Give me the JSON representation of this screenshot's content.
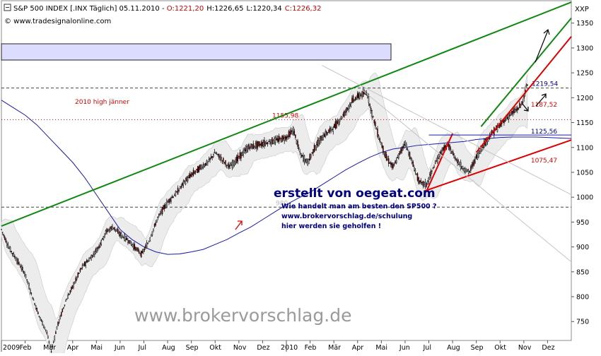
{
  "header": {
    "title": "S&P 500 INDEX [.INX Täglich] 05.11.2010 - ",
    "ohlc": [
      {
        "label": "O:",
        "value": "1221,20"
      },
      {
        "label": "H:",
        "value": "1226,65"
      },
      {
        "label": "L:",
        "value": "1220,34"
      },
      {
        "label": "C:",
        "value": "1226,32"
      }
    ],
    "source": "© www.tradesignalonline.com",
    "symbol": "XXP"
  },
  "colors": {
    "support_line": "#dd0000",
    "channel_line": "#118811",
    "moving_average": "#1a1aa8",
    "candle_up": "#ffffff",
    "candle_down": "#b00000",
    "band_fill": "#ececec",
    "info_text": "#000080",
    "watermark": "#9a9a9a",
    "highlight_box": "#dcdcff"
  },
  "annotations": {
    "headline": "erstellt von oegeat.com",
    "line1": "Wie handelt man am besten den SP500 ?",
    "line2": "www.brokervorschlag.de/schulung",
    "line3": "hier werden sie geholfen !",
    "watermark": "www.brokervorschlag.de",
    "high_label": "2010 high jänner"
  },
  "chart_data": {
    "type": "candlestick",
    "title": "S&P 500 INDEX [.INX Täglich] 05.11.2010",
    "x_unit": "month index (0 = Jan 2009)",
    "xlim": [
      0,
      24
    ],
    "ylim": [
      712,
      1395
    ],
    "yticks": [
      750,
      800,
      850,
      900,
      950,
      1000,
      1050,
      1100,
      1150,
      1200,
      1250,
      1300,
      1350
    ],
    "month_ticks": [
      {
        "x": 0.05,
        "label": "2009"
      },
      {
        "x": 1,
        "label": "Feb"
      },
      {
        "x": 2,
        "label": "Mär"
      },
      {
        "x": 3,
        "label": "Apr"
      },
      {
        "x": 4,
        "label": "Mai"
      },
      {
        "x": 5,
        "label": "Jun"
      },
      {
        "x": 6,
        "label": "Jul"
      },
      {
        "x": 7,
        "label": "Aug"
      },
      {
        "x": 8,
        "label": "Sep"
      },
      {
        "x": 9,
        "label": "Okt"
      },
      {
        "x": 10,
        "label": "Nov"
      },
      {
        "x": 11,
        "label": "Dez"
      },
      {
        "x": 12,
        "label": "2010"
      },
      {
        "x": 13,
        "label": "Feb"
      },
      {
        "x": 14,
        "label": "Mär"
      },
      {
        "x": 15,
        "label": "Apr"
      },
      {
        "x": 16,
        "label": "Mai"
      },
      {
        "x": 17,
        "label": "Jun"
      },
      {
        "x": 18,
        "label": "Jul"
      },
      {
        "x": 19,
        "label": "Aug"
      },
      {
        "x": 20,
        "label": "Sep"
      },
      {
        "x": 21,
        "label": "Okt"
      },
      {
        "x": 22,
        "label": "Nov"
      },
      {
        "x": 23,
        "label": "Dez"
      }
    ],
    "price_path": [
      [
        0.0,
        935
      ],
      [
        0.3,
        900
      ],
      [
        0.7,
        870
      ],
      [
        1.0,
        845
      ],
      [
        1.3,
        800
      ],
      [
        1.6,
        760
      ],
      [
        1.9,
        730
      ],
      [
        2.1,
        690
      ],
      [
        2.35,
        740
      ],
      [
        2.7,
        790
      ],
      [
        3.0,
        820
      ],
      [
        3.4,
        860
      ],
      [
        3.8,
        880
      ],
      [
        4.1,
        900
      ],
      [
        4.4,
        930
      ],
      [
        4.7,
        940
      ],
      [
        5.0,
        925
      ],
      [
        5.3,
        915
      ],
      [
        5.6,
        900
      ],
      [
        5.9,
        885
      ],
      [
        6.2,
        910
      ],
      [
        6.6,
        960
      ],
      [
        7.0,
        990
      ],
      [
        7.4,
        1010
      ],
      [
        7.7,
        1030
      ],
      [
        8.0,
        1045
      ],
      [
        8.4,
        1060
      ],
      [
        8.7,
        1070
      ],
      [
        9.0,
        1090
      ],
      [
        9.3,
        1075
      ],
      [
        9.6,
        1060
      ],
      [
        10.0,
        1080
      ],
      [
        10.4,
        1100
      ],
      [
        10.8,
        1105
      ],
      [
        11.2,
        1110
      ],
      [
        11.6,
        1115
      ],
      [
        12.0,
        1120
      ],
      [
        12.3,
        1135
      ],
      [
        12.6,
        1085
      ],
      [
        12.9,
        1070
      ],
      [
        13.2,
        1100
      ],
      [
        13.6,
        1125
      ],
      [
        14.0,
        1140
      ],
      [
        14.4,
        1165
      ],
      [
        14.8,
        1195
      ],
      [
        15.1,
        1205
      ],
      [
        15.4,
        1210
      ],
      [
        15.6,
        1170
      ],
      [
        15.9,
        1120
      ],
      [
        16.2,
        1080
      ],
      [
        16.5,
        1060
      ],
      [
        16.8,
        1090
      ],
      [
        17.0,
        1110
      ],
      [
        17.3,
        1070
      ],
      [
        17.6,
        1030
      ],
      [
        17.9,
        1025
      ],
      [
        18.2,
        1060
      ],
      [
        18.5,
        1090
      ],
      [
        18.8,
        1105
      ],
      [
        19.1,
        1080
      ],
      [
        19.4,
        1060
      ],
      [
        19.7,
        1050
      ],
      [
        20.0,
        1080
      ],
      [
        20.3,
        1105
      ],
      [
        20.6,
        1125
      ],
      [
        21.0,
        1145
      ],
      [
        21.4,
        1165
      ],
      [
        21.8,
        1180
      ],
      [
        22.0,
        1196
      ],
      [
        22.1,
        1222
      ],
      [
        22.15,
        1226.32
      ]
    ],
    "moving_average": [
      [
        0,
        1195
      ],
      [
        0.5,
        1180
      ],
      [
        1,
        1165
      ],
      [
        1.5,
        1145
      ],
      [
        2,
        1120
      ],
      [
        2.5,
        1095
      ],
      [
        3,
        1070
      ],
      [
        3.5,
        1040
      ],
      [
        4,
        1005
      ],
      [
        4.5,
        970
      ],
      [
        5,
        935
      ],
      [
        5.5,
        915
      ],
      [
        6,
        900
      ],
      [
        6.5,
        890
      ],
      [
        7,
        885
      ],
      [
        7.5,
        886
      ],
      [
        8,
        890
      ],
      [
        8.5,
        895
      ],
      [
        9,
        905
      ],
      [
        9.5,
        915
      ],
      [
        10,
        928
      ],
      [
        10.5,
        940
      ],
      [
        11,
        955
      ],
      [
        11.5,
        970
      ],
      [
        12,
        985
      ],
      [
        12.5,
        998
      ],
      [
        13,
        1010
      ],
      [
        13.5,
        1025
      ],
      [
        14,
        1040
      ],
      [
        14.5,
        1055
      ],
      [
        15,
        1068
      ],
      [
        15.5,
        1080
      ],
      [
        16,
        1090
      ],
      [
        16.5,
        1097
      ],
      [
        17,
        1100
      ],
      [
        17.5,
        1104
      ],
      [
        18,
        1106
      ],
      [
        18.5,
        1108
      ],
      [
        19,
        1110
      ],
      [
        19.5,
        1112
      ],
      [
        20,
        1116
      ],
      [
        20.5,
        1118
      ],
      [
        21,
        1120
      ],
      [
        21.5,
        1121
      ],
      [
        22,
        1121
      ],
      [
        22.5,
        1121
      ],
      [
        23,
        1120
      ],
      [
        23.5,
        1119
      ],
      [
        24,
        1118
      ]
    ],
    "trend_lines": [
      {
        "name": "channel-upper",
        "color": "green",
        "points": [
          [
            0,
            942
          ],
          [
            24,
            1392
          ]
        ]
      },
      {
        "name": "short-channel",
        "color": "green",
        "points": [
          [
            20.2,
            1142
          ],
          [
            24,
            1360
          ]
        ]
      },
      {
        "name": "rise-support",
        "color": "red",
        "points": [
          [
            20.0,
            1090
          ],
          [
            24,
            1323
          ]
        ]
      },
      {
        "name": "support",
        "color": "red",
        "points": [
          [
            17.8,
            1012
          ],
          [
            24,
            1115
          ]
        ]
      },
      {
        "name": "july-rise",
        "color": "red",
        "points": [
          [
            17.9,
            1012
          ],
          [
            19.0,
            1128
          ]
        ]
      }
    ],
    "horizontal_levels": [
      {
        "name": "resistance",
        "value": 1219.54,
        "label": "1219,54",
        "style": "dashed"
      },
      {
        "name": "jan-high",
        "value": 1155.98,
        "label": "1155,98",
        "style": "dotted-red"
      },
      {
        "name": "level-980",
        "value": 980,
        "label": "980",
        "style": "dashed"
      }
    ],
    "value_labels": [
      {
        "label": "1187,52",
        "x": 22.15,
        "y": 1187.52
      },
      {
        "label": "1125,56",
        "x": 22.15,
        "y": 1125.56
      },
      {
        "label": "1075,47",
        "x": 22.15,
        "y": 1075.47
      }
    ],
    "last_close": 1226.32
  }
}
